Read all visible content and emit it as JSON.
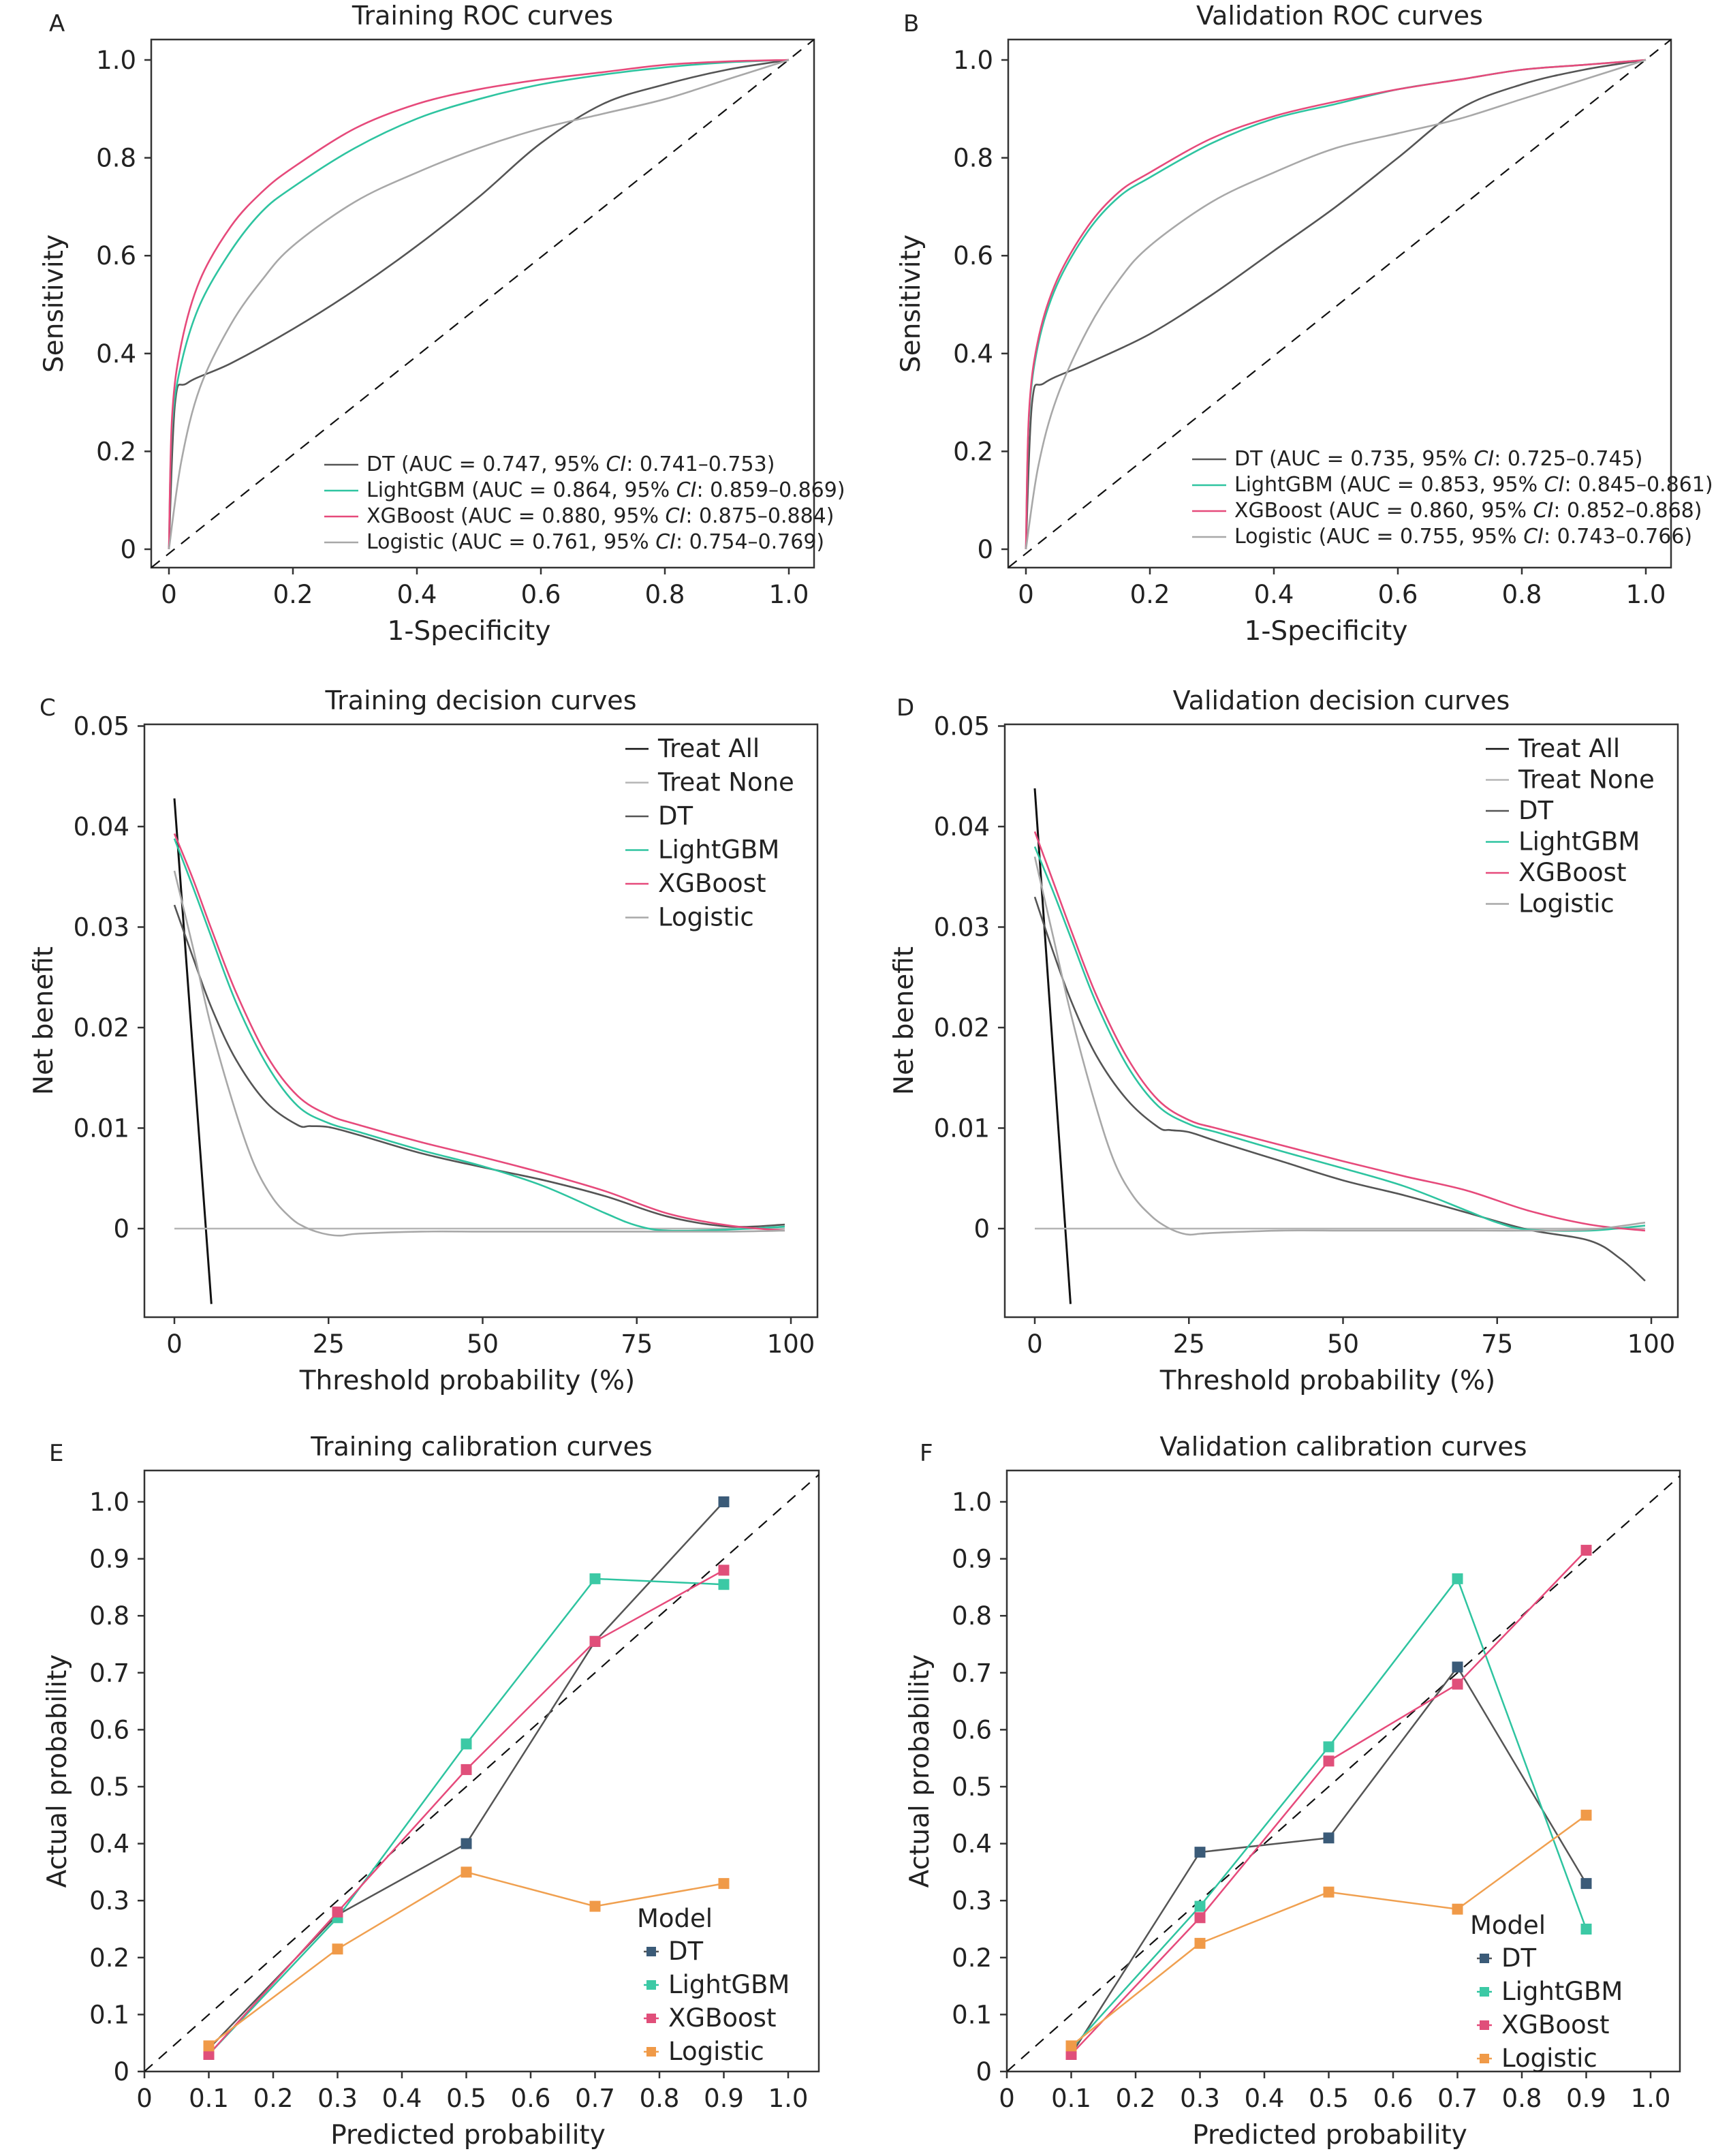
{
  "colors": {
    "DT": "#555555",
    "LightGBM": "#2ec4a0",
    "XGBoost": "#e64a7b",
    "Logistic": "#a8a8a8",
    "Logistic_cal": "#f0a050",
    "DT_cal_marker": "#3b5b78",
    "LightGBM_cal_marker": "#3cc9a5",
    "XGBoost_cal_marker": "#e04f7a",
    "Logistic_cal_marker": "#f09a48",
    "TreatAll": "#111111",
    "TreatNone": "#b5b5b5",
    "Reference": "#111111"
  },
  "chart_data": [
    {
      "panel": "A",
      "type": "line",
      "title": "Training ROC curves",
      "xlabel": "1-Specificity",
      "ylabel": "Sensitivity",
      "xlim": [
        0,
        1
      ],
      "ylim": [
        0,
        1
      ],
      "xticks": [
        "0",
        "0.2",
        "0.4",
        "0.6",
        "0.8",
        "1.0"
      ],
      "yticks": [
        "0",
        "0.2",
        "0.4",
        "0.6",
        "0.8",
        "1.0"
      ],
      "diagonal": true,
      "legend_position": "bottom-right",
      "legend": [
        {
          "series": "DT",
          "pre": "DT (AUC = 0.747, 95% ",
          "ci": "CI",
          "post": ": 0.741–0.753)"
        },
        {
          "series": "LightGBM",
          "pre": "LightGBM (AUC = 0.864, 95% ",
          "ci": "CI",
          "post": ": 0.859–0.869)"
        },
        {
          "series": "XGBoost",
          "pre": "XGBoost (AUC = 0.880, 95% ",
          "ci": "CI",
          "post": ": 0.875–0.884)"
        },
        {
          "series": "Logistic",
          "pre": "Logistic (AUC = 0.761, 95% ",
          "ci": "CI",
          "post": ": 0.754–0.769)"
        }
      ],
      "series": [
        {
          "name": "DT",
          "x": [
            0,
            0.01,
            0.03,
            0.1,
            0.2,
            0.3,
            0.4,
            0.5,
            0.6,
            0.7,
            0.8,
            0.9,
            1.0
          ],
          "y": [
            0,
            0.3,
            0.34,
            0.38,
            0.45,
            0.53,
            0.62,
            0.72,
            0.83,
            0.91,
            0.95,
            0.98,
            1.0
          ]
        },
        {
          "name": "LightGBM",
          "x": [
            0,
            0.005,
            0.02,
            0.05,
            0.1,
            0.15,
            0.2,
            0.3,
            0.4,
            0.5,
            0.6,
            0.7,
            0.8,
            0.9,
            1.0
          ],
          "y": [
            0,
            0.25,
            0.38,
            0.5,
            0.61,
            0.69,
            0.74,
            0.82,
            0.88,
            0.92,
            0.95,
            0.97,
            0.985,
            0.995,
            1.0
          ]
        },
        {
          "name": "XGBoost",
          "x": [
            0,
            0.005,
            0.02,
            0.05,
            0.1,
            0.15,
            0.2,
            0.3,
            0.4,
            0.5,
            0.6,
            0.7,
            0.8,
            0.9,
            1.0
          ],
          "y": [
            0,
            0.27,
            0.42,
            0.55,
            0.66,
            0.73,
            0.78,
            0.86,
            0.91,
            0.94,
            0.96,
            0.975,
            0.99,
            0.997,
            1.0
          ]
        },
        {
          "name": "Logistic",
          "x": [
            0,
            0.02,
            0.05,
            0.1,
            0.15,
            0.2,
            0.3,
            0.4,
            0.5,
            0.6,
            0.7,
            0.8,
            0.9,
            1.0
          ],
          "y": [
            0,
            0.18,
            0.33,
            0.46,
            0.55,
            0.62,
            0.71,
            0.77,
            0.82,
            0.86,
            0.89,
            0.92,
            0.96,
            1.0
          ]
        }
      ]
    },
    {
      "panel": "B",
      "type": "line",
      "title": "Validation ROC curves",
      "xlabel": "1-Specificity",
      "ylabel": "Sensitivity",
      "xlim": [
        0,
        1
      ],
      "ylim": [
        0,
        1
      ],
      "xticks": [
        "0",
        "0.2",
        "0.4",
        "0.6",
        "0.8",
        "1.0"
      ],
      "yticks": [
        "0",
        "0.2",
        "0.4",
        "0.6",
        "0.8",
        "1.0"
      ],
      "diagonal": true,
      "legend_position": "bottom-right",
      "legend": [
        {
          "series": "DT",
          "pre": "DT (AUC = 0.735, 95% ",
          "ci": "CI",
          "post": ": 0.725–0.745)"
        },
        {
          "series": "LightGBM",
          "pre": "LightGBM (AUC = 0.853, 95% ",
          "ci": "CI",
          "post": ": 0.845–0.861)"
        },
        {
          "series": "XGBoost",
          "pre": "XGBoost (AUC = 0.860, 95% ",
          "ci": "CI",
          "post": ": 0.852–0.868)"
        },
        {
          "series": "Logistic",
          "pre": "Logistic (AUC = 0.755, 95% ",
          "ci": "CI",
          "post": ": 0.743–0.766)"
        }
      ],
      "series": [
        {
          "name": "DT",
          "x": [
            0,
            0.01,
            0.03,
            0.1,
            0.2,
            0.3,
            0.4,
            0.5,
            0.6,
            0.7,
            0.8,
            0.9,
            1.0
          ],
          "y": [
            0,
            0.3,
            0.34,
            0.38,
            0.44,
            0.52,
            0.61,
            0.7,
            0.8,
            0.9,
            0.95,
            0.98,
            1.0
          ]
        },
        {
          "name": "LightGBM",
          "x": [
            0,
            0.005,
            0.02,
            0.05,
            0.1,
            0.15,
            0.2,
            0.3,
            0.4,
            0.5,
            0.6,
            0.7,
            0.8,
            0.9,
            1.0
          ],
          "y": [
            0,
            0.27,
            0.42,
            0.54,
            0.65,
            0.72,
            0.76,
            0.83,
            0.88,
            0.91,
            0.94,
            0.96,
            0.98,
            0.99,
            1.0
          ]
        },
        {
          "name": "XGBoost",
          "x": [
            0,
            0.005,
            0.02,
            0.05,
            0.1,
            0.15,
            0.2,
            0.3,
            0.4,
            0.5,
            0.6,
            0.7,
            0.8,
            0.9,
            1.0
          ],
          "y": [
            0,
            0.28,
            0.43,
            0.55,
            0.66,
            0.73,
            0.77,
            0.84,
            0.885,
            0.915,
            0.94,
            0.96,
            0.98,
            0.99,
            1.0
          ]
        },
        {
          "name": "Logistic",
          "x": [
            0,
            0.02,
            0.05,
            0.1,
            0.15,
            0.2,
            0.3,
            0.4,
            0.5,
            0.6,
            0.7,
            0.8,
            0.9,
            1.0
          ],
          "y": [
            0,
            0.17,
            0.31,
            0.45,
            0.55,
            0.62,
            0.71,
            0.77,
            0.82,
            0.85,
            0.88,
            0.92,
            0.96,
            1.0
          ]
        }
      ]
    },
    {
      "panel": "C",
      "type": "line",
      "title": "Training decision curves",
      "xlabel": "Threshold probability (%)",
      "ylabel": "Net benefit",
      "xlim": [
        0,
        100
      ],
      "ylim": [
        -0.0075,
        0.051
      ],
      "xticks": [
        0,
        25,
        50,
        75,
        100
      ],
      "yticks": [
        0,
        0.01,
        0.02,
        0.03,
        0.04,
        0.05
      ],
      "ytick_labels": [
        "0",
        "0.01",
        "0.02",
        "0.03",
        "0.04",
        "0.05"
      ],
      "legend_position": "top-right",
      "legend": [
        "Treat All",
        "Treat None",
        "DT",
        "LightGBM",
        "XGBoost",
        "Logistic"
      ],
      "series": [
        {
          "name": "Treat All",
          "x": [
            0,
            6
          ],
          "y": [
            0.0428,
            -0.0075
          ]
        },
        {
          "name": "Treat None",
          "x": [
            0,
            99
          ],
          "y": [
            0,
            0
          ]
        },
        {
          "name": "DT",
          "x": [
            0,
            3,
            6,
            10,
            15,
            20,
            22,
            25,
            30,
            40,
            50,
            60,
            70,
            80,
            90,
            99
          ],
          "y": [
            0.0322,
            0.027,
            0.022,
            0.0168,
            0.0125,
            0.0103,
            0.0102,
            0.0101,
            0.0093,
            0.0075,
            0.0061,
            0.0048,
            0.0032,
            0.0012,
            0.0002,
            0.0004
          ]
        },
        {
          "name": "LightGBM",
          "x": [
            0,
            3,
            6,
            10,
            15,
            20,
            25,
            30,
            40,
            50,
            60,
            70,
            75,
            80,
            90,
            99
          ],
          "y": [
            0.0388,
            0.034,
            0.029,
            0.0225,
            0.0163,
            0.0122,
            0.0105,
            0.0096,
            0.0078,
            0.0062,
            0.0042,
            0.0015,
            0.0003,
            -0.0002,
            -0.0001,
            0.0002
          ]
        },
        {
          "name": "XGBoost",
          "x": [
            0,
            3,
            6,
            10,
            15,
            20,
            25,
            30,
            40,
            50,
            60,
            70,
            80,
            90,
            99
          ],
          "y": [
            0.0393,
            0.0348,
            0.0298,
            0.0235,
            0.0172,
            0.0132,
            0.0113,
            0.0103,
            0.0086,
            0.0071,
            0.0055,
            0.0037,
            0.0015,
            0.0003,
            -0.0002
          ]
        },
        {
          "name": "Logistic",
          "x": [
            0,
            3,
            6,
            10,
            13,
            16,
            19,
            21,
            23,
            25,
            27,
            30,
            40,
            50,
            60,
            70,
            80,
            90,
            99
          ],
          "y": [
            0.0356,
            0.028,
            0.02,
            0.0115,
            0.0063,
            0.003,
            0.001,
            0.0002,
            -0.0003,
            -0.0006,
            -0.0007,
            -0.0005,
            -0.0003,
            -0.0003,
            -0.0003,
            -0.0003,
            -0.0003,
            -0.0003,
            -0.0002
          ]
        }
      ]
    },
    {
      "panel": "D",
      "type": "line",
      "title": "Validation decision curves",
      "xlabel": "Threshold probability (%)",
      "ylabel": "Net benefit",
      "xlim": [
        0,
        100
      ],
      "ylim": [
        -0.0075,
        0.051
      ],
      "xticks": [
        0,
        25,
        50,
        75,
        100
      ],
      "yticks": [
        0,
        0.01,
        0.02,
        0.03,
        0.04,
        0.05
      ],
      "ytick_labels": [
        "0",
        "0.01",
        "0.02",
        "0.03",
        "0.04",
        "0.05"
      ],
      "legend_position": "top-right",
      "legend": [
        "Treat All",
        "Treat None",
        "DT",
        "LightGBM",
        "XGBoost",
        "Logistic"
      ],
      "series": [
        {
          "name": "Treat All",
          "x": [
            0,
            5.8
          ],
          "y": [
            0.0438,
            -0.0075
          ]
        },
        {
          "name": "Treat None",
          "x": [
            0,
            99
          ],
          "y": [
            0,
            0
          ]
        },
        {
          "name": "DT",
          "x": [
            0,
            3,
            6,
            10,
            15,
            20,
            22,
            25,
            30,
            40,
            50,
            60,
            70,
            80,
            90,
            95,
            99
          ],
          "y": [
            0.033,
            0.0275,
            0.0225,
            0.0172,
            0.0128,
            0.0101,
            0.0098,
            0.0096,
            0.0086,
            0.0067,
            0.0048,
            0.0033,
            0.0016,
            -0.0001,
            -0.0012,
            -0.003,
            -0.0052
          ]
        },
        {
          "name": "LightGBM",
          "x": [
            0,
            3,
            6,
            10,
            15,
            20,
            25,
            30,
            40,
            50,
            60,
            70,
            75,
            80,
            90,
            99
          ],
          "y": [
            0.038,
            0.0335,
            0.0287,
            0.0224,
            0.0162,
            0.0122,
            0.0104,
            0.0095,
            0.0077,
            0.006,
            0.0042,
            0.0018,
            0.0006,
            -0.0001,
            -0.0002,
            0.0003
          ]
        },
        {
          "name": "XGBoost",
          "x": [
            0,
            3,
            6,
            10,
            15,
            20,
            25,
            30,
            40,
            50,
            60,
            70,
            80,
            90,
            99
          ],
          "y": [
            0.0395,
            0.0345,
            0.0295,
            0.0232,
            0.017,
            0.0128,
            0.0108,
            0.0099,
            0.0083,
            0.0067,
            0.0052,
            0.0038,
            0.0018,
            0.0004,
            -0.0002
          ]
        },
        {
          "name": "Logistic",
          "x": [
            0,
            3,
            6,
            10,
            13,
            16,
            19,
            21,
            23,
            25,
            27,
            30,
            40,
            50,
            60,
            70,
            80,
            90,
            99
          ],
          "y": [
            0.037,
            0.029,
            0.021,
            0.012,
            0.0065,
            0.0032,
            0.0012,
            0.0003,
            -0.0003,
            -0.0006,
            -0.0005,
            -0.0004,
            -0.0002,
            -0.0002,
            -0.0002,
            -0.0002,
            -0.0002,
            -0.0001,
            0.0006
          ]
        }
      ]
    },
    {
      "panel": "E",
      "type": "line",
      "title": "Training calibration curves",
      "xlabel": "Predicted probability",
      "ylabel": "Actual probability",
      "xlim": [
        0,
        1.05
      ],
      "ylim": [
        0,
        1.05
      ],
      "xticks": [
        "0",
        "0.1",
        "0.2",
        "0.3",
        "0.4",
        "0.5",
        "0.6",
        "0.7",
        "0.8",
        "0.9",
        "1.0"
      ],
      "yticks": [
        "0",
        "0.1",
        "0.2",
        "0.3",
        "0.4",
        "0.5",
        "0.6",
        "0.7",
        "0.8",
        "0.9",
        "1.0"
      ],
      "diagonal": true,
      "legend_title": "Model",
      "legend_position": "bottom-right",
      "legend": [
        "DT",
        "LightGBM",
        "XGBoost",
        "Logistic"
      ],
      "series": [
        {
          "name": "DT",
          "x": [
            0.1,
            0.3,
            0.5,
            0.7,
            0.9
          ],
          "y": [
            0.04,
            0.275,
            0.4,
            0.755,
            1.0
          ]
        },
        {
          "name": "LightGBM",
          "x": [
            0.1,
            0.3,
            0.5,
            0.7,
            0.9
          ],
          "y": [
            0.03,
            0.27,
            0.575,
            0.865,
            0.855
          ]
        },
        {
          "name": "XGBoost",
          "x": [
            0.1,
            0.3,
            0.5,
            0.7,
            0.9
          ],
          "y": [
            0.03,
            0.28,
            0.53,
            0.755,
            0.88
          ]
        },
        {
          "name": "Logistic",
          "x": [
            0.1,
            0.3,
            0.5,
            0.7,
            0.9
          ],
          "y": [
            0.045,
            0.215,
            0.35,
            0.29,
            0.33
          ]
        }
      ]
    },
    {
      "panel": "F",
      "type": "line",
      "title": "Validation calibration curves",
      "xlabel": "Predicted probability",
      "ylabel": "Actual probability",
      "xlim": [
        0,
        1.05
      ],
      "ylim": [
        0,
        1.05
      ],
      "xticks": [
        "0",
        "0.1",
        "0.2",
        "0.3",
        "0.4",
        "0.5",
        "0.6",
        "0.7",
        "0.8",
        "0.9",
        "1.0"
      ],
      "yticks": [
        "0",
        "0.1",
        "0.2",
        "0.3",
        "0.4",
        "0.5",
        "0.6",
        "0.7",
        "0.8",
        "0.9",
        "1.0"
      ],
      "diagonal": true,
      "legend_title": "Model",
      "legend_position": "bottom-right",
      "legend": [
        "DT",
        "LightGBM",
        "XGBoost",
        "Logistic"
      ],
      "series": [
        {
          "name": "DT",
          "x": [
            0.1,
            0.3,
            0.5,
            0.7,
            0.9
          ],
          "y": [
            0.03,
            0.385,
            0.41,
            0.71,
            0.33
          ]
        },
        {
          "name": "LightGBM",
          "x": [
            0.1,
            0.3,
            0.5,
            0.7,
            0.9
          ],
          "y": [
            0.04,
            0.29,
            0.57,
            0.865,
            0.25
          ]
        },
        {
          "name": "XGBoost",
          "x": [
            0.1,
            0.3,
            0.5,
            0.7,
            0.9
          ],
          "y": [
            0.03,
            0.27,
            0.545,
            0.68,
            0.915
          ]
        },
        {
          "name": "Logistic",
          "x": [
            0.1,
            0.3,
            0.5,
            0.7,
            0.9
          ],
          "y": [
            0.045,
            0.225,
            0.315,
            0.285,
            0.45
          ]
        }
      ]
    }
  ]
}
